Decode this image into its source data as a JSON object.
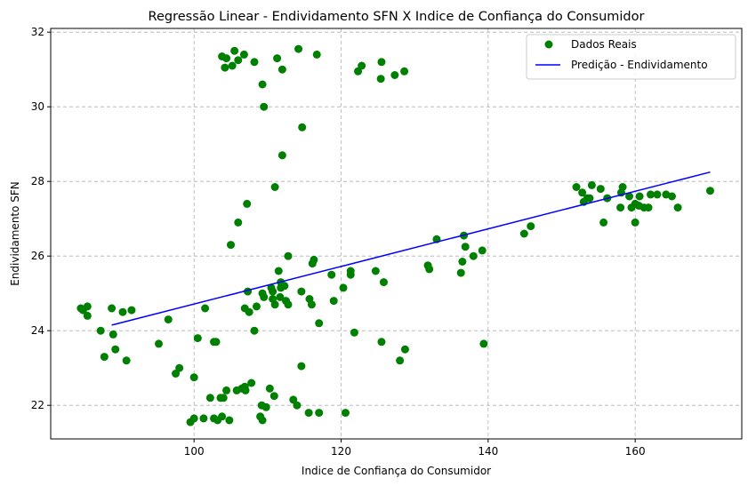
{
  "chart_data": {
    "type": "scatter",
    "title": "Regressão Linear - Endividamento SFN X Indice de Confiança do Consumidor",
    "xlabel": "Indice de Confiança do Consumidor",
    "ylabel": "Endividamento SFN",
    "xlim": [
      80.5,
      174.5
    ],
    "ylim": [
      21.1,
      32.1
    ],
    "xticks": [
      100,
      120,
      140,
      160
    ],
    "yticks": [
      22,
      24,
      26,
      28,
      30,
      32
    ],
    "grid": true,
    "legend_position": "top-right",
    "series": [
      {
        "name": "Dados Reais",
        "kind": "scatter",
        "color": "#008000",
        "points": [
          [
            84.6,
            24.6
          ],
          [
            84.9,
            24.55
          ],
          [
            85.5,
            24.65
          ],
          [
            85.5,
            24.4
          ],
          [
            87.3,
            24.0
          ],
          [
            87.8,
            23.3
          ],
          [
            88.8,
            24.6
          ],
          [
            89.0,
            23.9
          ],
          [
            89.3,
            23.5
          ],
          [
            90.3,
            24.5
          ],
          [
            90.8,
            23.2
          ],
          [
            91.5,
            24.55
          ],
          [
            95.2,
            23.65
          ],
          [
            96.5,
            24.3
          ],
          [
            97.5,
            22.85
          ],
          [
            98.0,
            23.0
          ],
          [
            99.5,
            21.55
          ],
          [
            100.0,
            21.65
          ],
          [
            100.0,
            22.75
          ],
          [
            100.5,
            23.8
          ],
          [
            101.3,
            21.65
          ],
          [
            101.5,
            24.6
          ],
          [
            102.2,
            22.2
          ],
          [
            102.7,
            21.65
          ],
          [
            102.7,
            23.7
          ],
          [
            103.0,
            23.7
          ],
          [
            103.2,
            21.6
          ],
          [
            103.6,
            22.2
          ],
          [
            103.8,
            21.7
          ],
          [
            103.8,
            31.35
          ],
          [
            104.0,
            22.2
          ],
          [
            104.2,
            31.05
          ],
          [
            104.4,
            22.4
          ],
          [
            104.4,
            31.3
          ],
          [
            104.8,
            21.6
          ],
          [
            105.0,
            26.3
          ],
          [
            105.2,
            31.1
          ],
          [
            105.5,
            31.5
          ],
          [
            105.8,
            22.4
          ],
          [
            106.0,
            26.9
          ],
          [
            106.0,
            31.25
          ],
          [
            106.5,
            22.45
          ],
          [
            106.8,
            31.4
          ],
          [
            106.9,
            22.5
          ],
          [
            106.9,
            24.6
          ],
          [
            107.0,
            22.4
          ],
          [
            107.2,
            27.4
          ],
          [
            107.3,
            25.05
          ],
          [
            107.5,
            24.5
          ],
          [
            107.8,
            22.6
          ],
          [
            108.2,
            24.0
          ],
          [
            108.2,
            31.2
          ],
          [
            108.5,
            24.65
          ],
          [
            109.0,
            21.7
          ],
          [
            109.2,
            22.0
          ],
          [
            109.3,
            25.0
          ],
          [
            109.3,
            21.6
          ],
          [
            109.3,
            30.6
          ],
          [
            109.5,
            30.0
          ],
          [
            109.5,
            24.9
          ],
          [
            109.8,
            21.95
          ],
          [
            110.3,
            22.45
          ],
          [
            110.5,
            25.15
          ],
          [
            110.7,
            25.05
          ],
          [
            110.7,
            24.85
          ],
          [
            110.9,
            22.25
          ],
          [
            111.0,
            24.7
          ],
          [
            111.0,
            27.85
          ],
          [
            111.3,
            31.3
          ],
          [
            111.5,
            25.6
          ],
          [
            111.7,
            24.9
          ],
          [
            111.8,
            25.3
          ],
          [
            111.8,
            25.15
          ],
          [
            112.0,
            31.0
          ],
          [
            112.0,
            28.7
          ],
          [
            112.3,
            25.2
          ],
          [
            112.5,
            24.8
          ],
          [
            112.8,
            26.0
          ],
          [
            112.8,
            24.7
          ],
          [
            113.5,
            22.15
          ],
          [
            114.0,
            22.0
          ],
          [
            114.2,
            31.55
          ],
          [
            114.6,
            23.05
          ],
          [
            114.6,
            25.05
          ],
          [
            114.7,
            29.45
          ],
          [
            115.6,
            21.8
          ],
          [
            115.7,
            24.85
          ],
          [
            116.0,
            24.7
          ],
          [
            116.1,
            25.8
          ],
          [
            116.3,
            25.9
          ],
          [
            116.7,
            31.4
          ],
          [
            117.0,
            24.2
          ],
          [
            117.0,
            21.8
          ],
          [
            118.7,
            25.5
          ],
          [
            119.0,
            24.8
          ],
          [
            120.3,
            25.15
          ],
          [
            120.6,
            21.8
          ],
          [
            121.3,
            25.6
          ],
          [
            121.3,
            25.5
          ],
          [
            121.8,
            23.95
          ],
          [
            122.3,
            30.95
          ],
          [
            122.8,
            31.1
          ],
          [
            124.7,
            25.6
          ],
          [
            125.4,
            30.75
          ],
          [
            125.5,
            31.2
          ],
          [
            125.5,
            23.7
          ],
          [
            125.8,
            25.3
          ],
          [
            127.3,
            30.85
          ],
          [
            128.0,
            23.2
          ],
          [
            128.6,
            30.95
          ],
          [
            128.7,
            23.5
          ],
          [
            131.8,
            25.75
          ],
          [
            132.0,
            25.65
          ],
          [
            133.0,
            26.45
          ],
          [
            136.3,
            25.55
          ],
          [
            136.5,
            25.85
          ],
          [
            136.7,
            26.55
          ],
          [
            136.9,
            26.25
          ],
          [
            138.0,
            26.0
          ],
          [
            139.2,
            26.15
          ],
          [
            139.4,
            23.65
          ],
          [
            144.9,
            26.6
          ],
          [
            145.8,
            26.8
          ],
          [
            152.0,
            27.85
          ],
          [
            152.8,
            27.7
          ],
          [
            153.0,
            27.45
          ],
          [
            153.5,
            27.55
          ],
          [
            153.8,
            27.55
          ],
          [
            154.1,
            27.9
          ],
          [
            155.3,
            27.8
          ],
          [
            155.7,
            26.9
          ],
          [
            156.2,
            27.55
          ],
          [
            158.0,
            27.3
          ],
          [
            158.1,
            27.7
          ],
          [
            158.3,
            27.85
          ],
          [
            159.2,
            27.6
          ],
          [
            159.5,
            27.3
          ],
          [
            160.0,
            26.9
          ],
          [
            160.0,
            27.4
          ],
          [
            160.5,
            27.35
          ],
          [
            160.6,
            27.6
          ],
          [
            161.2,
            27.3
          ],
          [
            161.8,
            27.3
          ],
          [
            162.1,
            27.65
          ],
          [
            163.0,
            27.65
          ],
          [
            164.2,
            27.65
          ],
          [
            165.0,
            27.6
          ],
          [
            165.8,
            27.3
          ],
          [
            170.2,
            27.75
          ]
        ]
      },
      {
        "name": "Predição - Endividamento",
        "kind": "line",
        "color": "#0000ff",
        "points": [
          [
            88.8,
            24.15
          ],
          [
            170.2,
            28.25
          ]
        ]
      }
    ]
  }
}
